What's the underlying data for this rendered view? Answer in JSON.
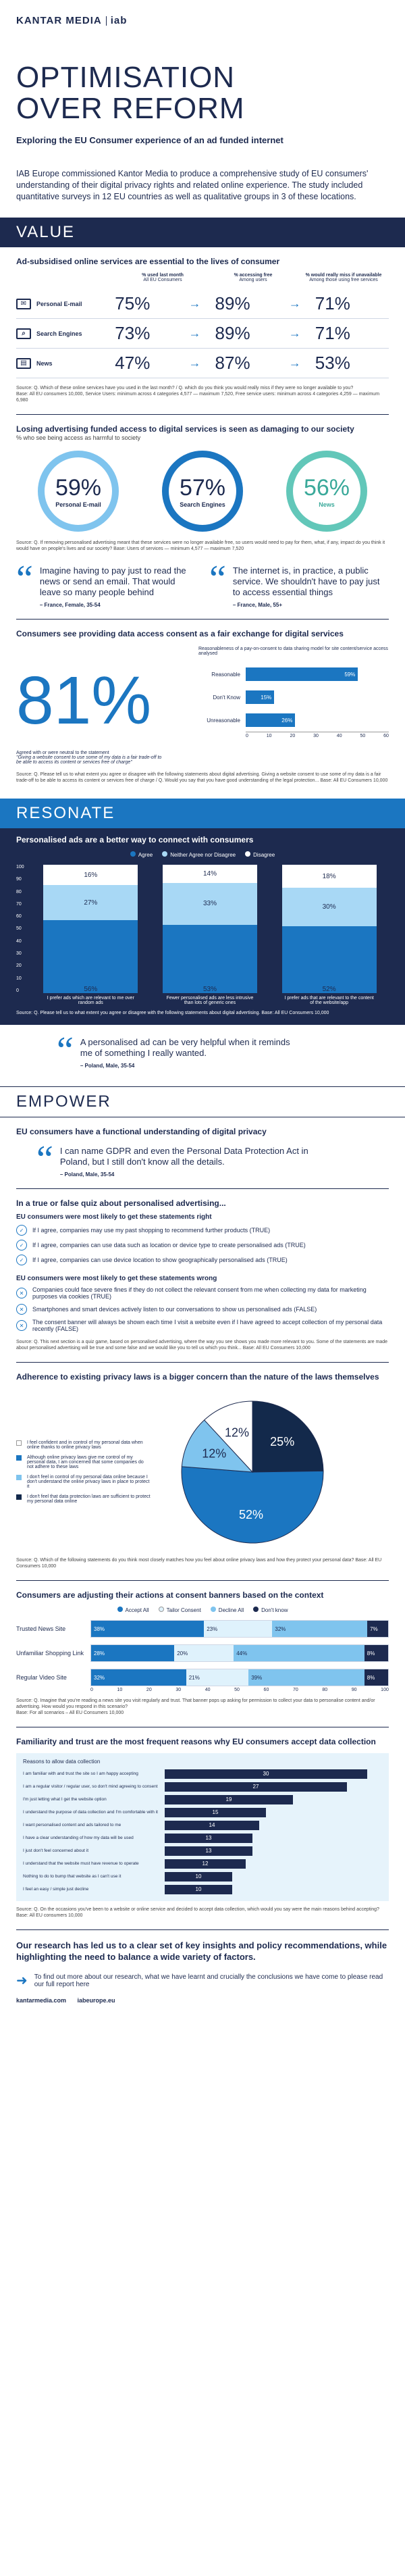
{
  "header": {
    "logo_left": "KANTAR MEDIA",
    "logo_right": "iab"
  },
  "title_line1": "OPTIMISATION",
  "title_line2": "OVER REFORM",
  "subtitle": "Exploring the EU Consumer experience of an ad funded internet",
  "intro": "IAB Europe commissioned Kantor Media to produce a comprehensive study of EU consumers' understanding of their digital privacy rights and related online experience. The study included quantitative surveys in 12 EU countries as well as qualitative groups in 3 of these locations.",
  "value": {
    "band": "VALUE",
    "heading": "Ad-subsidised online services are essential to the lives of consumer",
    "col1": "% used last month",
    "col1_sub": "All EU Consumers",
    "col2": "% accessing free",
    "col2_sub": "Among users",
    "col3": "% would really miss if unavailable",
    "col3_sub": "Among those using free services",
    "rows": [
      {
        "label": "Personal E-mail",
        "v1": "75%",
        "v2": "89%",
        "v3": "71%"
      },
      {
        "label": "Search Engines",
        "v1": "73%",
        "v2": "89%",
        "v3": "71%"
      },
      {
        "label": "News",
        "v1": "47%",
        "v2": "87%",
        "v3": "53%"
      }
    ],
    "source": "Source: Q. Which of these online services have you used in the last month? / Q. which do you think you would really miss if they were no longer available to you?",
    "base": "Base: All EU consumers 10,000, Service Users: minimum across 4 categories 4,577 — maximum 7,520, Free service users: minimum across 4 categories 4,259 — maximum 6,980"
  },
  "losing": {
    "heading": "Losing advertising funded access to digital services is seen as damaging to our society",
    "sub": "% who see being access as harmful to society",
    "circles": [
      {
        "pct": "59%",
        "name": "Personal E-mail"
      },
      {
        "pct": "57%",
        "name": "Search Engines"
      },
      {
        "pct": "56%",
        "name": "News"
      }
    ],
    "source": "Source: Q. If removing personalised advertising meant that these services were no longer available free, so users would need to pay for them, what, if any, impact do you think it would have on people's lives and our society? Base: Users of services — minimum 4,577 — maximum 7,520"
  },
  "quotes1": [
    {
      "text": "Imagine having to pay just to read the news or send an email. That would leave so many people behind",
      "author": "– France, Female, 35-54"
    },
    {
      "text": "The internet is, in practice, a public service. We shouldn't have to pay just to access essential things",
      "author": "– France, Male, 55+"
    }
  ],
  "exchange": {
    "heading": "Consumers see providing data access consent as a fair exchange for digital services",
    "big": "81%",
    "big_caption": "Agreed with or were neutral to the statement",
    "big_quote": "\"Giving a website consent to use some of my data is a fair trade-off to be able to access its content or services free of charge\"",
    "chart_title": "Reasonableness of a pay-on-consent to data sharing model for site content/service access analysed",
    "bars": [
      {
        "label": "Reasonable",
        "value": "59%"
      },
      {
        "label": "Don't Know",
        "value": "15%"
      },
      {
        "label": "Unreasonable",
        "value": "26%"
      }
    ],
    "axis": [
      "0",
      "10",
      "20",
      "30",
      "40",
      "50",
      "60"
    ],
    "source": "Source: Q. Please tell us to what extent you agree or disagree with the following statements about digital advertising. Giving a website consent to use some of my data is a fair trade-off to be able to access its content or services free of charge / Q. Would you say that you have good understanding of the legal protection... Base: All EU Consumers 10,000"
  },
  "resonate": {
    "band": "RESONATE",
    "heading": "Personalised ads are a better way to connect with consumers",
    "legend": [
      "Agree",
      "Neither Agree nor Disagree",
      "Disagree"
    ],
    "yaxis": [
      "100",
      "90",
      "80",
      "70",
      "60",
      "50",
      "40",
      "30",
      "20",
      "10",
      "0"
    ],
    "groups": [
      {
        "label": "I prefer ads which are relevant to me over random ads",
        "agree": "56%",
        "neutral": "27%",
        "disagree": "16%"
      },
      {
        "label": "Fewer personalised ads are less intrusive than lots of generic ones",
        "agree": "53%",
        "neutral": "33%",
        "disagree": "14%"
      },
      {
        "label": "I prefer ads that are relevant to the content of the website/app",
        "agree": "52%",
        "neutral": "30%",
        "disagree": "18%"
      }
    ],
    "source": "Source: Q. Please tell us to what extent you agree or disagree with the following statements about digital advertising. Base: All EU Consumers 10,000",
    "quote": "A personalised ad can be very helpful when it reminds me of something I really wanted.",
    "quote_author": "– Poland, Male, 35-54"
  },
  "empower": {
    "band": "EMPOWER",
    "heading": "EU consumers have a functional understanding of digital privacy",
    "quote": "I can name GDPR and even the Personal Data Protection Act in Poland, but I still don't know all the details.",
    "quote_author": "– Poland, Male, 35-54",
    "quiz_title": "In a true or false quiz about personalised advertising...",
    "right_title": "EU consumers were most likely to get these statements right",
    "right": [
      "If I agree, companies may use my past shopping to recommend further products (TRUE)",
      "If I agree, companies can use data such as location or device type to create personalised ads (TRUE)",
      "If I agree, companies can use device location to show geographically personalised ads (TRUE)"
    ],
    "wrong_title": "EU consumers were most likely to get these statements wrong",
    "wrong": [
      "Companies could face severe fines if they do not collect the relevant consent from me when collecting my data for marketing purposes via cookies (TRUE)",
      "Smartphones and smart devices actively listen to our conversations to show us personalised ads (FALSE)",
      "The consent banner will always be shown each time I visit a website even if I have agreed to accept collection of my personal data recently (FALSE)"
    ],
    "source": "Source: Q. This next section is a quiz game, based on personalised advertising, where the way you see shows you made more relevant to you. Some of the statements are made about personalised advertising will be true and some false and we would like you to tell us which you think... Base: All EU Consumers 10,000"
  },
  "adherence": {
    "heading": "Adherence to existing privacy laws is a bigger concern than the nature of the laws themselves",
    "legend": [
      "I feel confident and in control of my personal data when online thanks to online privacy laws",
      "Although online privacy laws give me control of my personal data, I am concerned that some companies do not adhere to these laws",
      "I don't feel in control of my personal data online because I don't understand the online privacy laws in place to protect it",
      "I don't feel that data protection laws are sufficient to protect my personal data online"
    ],
    "slices": [
      {
        "label": "25%",
        "value": 25,
        "color": "#13294b"
      },
      {
        "label": "52%",
        "value": 52,
        "color": "#1b76c1"
      },
      {
        "label": "12%",
        "value": 12,
        "color": "#7fc4ee"
      },
      {
        "label": "12%",
        "value": 12,
        "color": "#ffffff"
      }
    ],
    "source": "Source: Q. Which of the following statements do you think most closely matches how you feel about online privacy laws and how they protect your personal data? Base: All EU Consumers 10,000"
  },
  "consent": {
    "heading": "Consumers are adjusting their actions at consent banners based on the context",
    "legend": [
      "Accept All",
      "Tailor Consent",
      "Decline All",
      "Don't know"
    ],
    "rows": [
      {
        "label": "Trusted News Site",
        "a": "38%",
        "b": "23%",
        "c": "32%",
        "d": "7%"
      },
      {
        "label": "Unfamiliar Shopping Link",
        "a": "28%",
        "b": "20%",
        "c": "44%",
        "d": "8%"
      },
      {
        "label": "Regular Video Site",
        "a": "32%",
        "b": "21%",
        "c": "39%",
        "d": "8%"
      }
    ],
    "axis": [
      "0",
      "10",
      "20",
      "30",
      "40",
      "50",
      "60",
      "70",
      "80",
      "90",
      "100"
    ],
    "source": "Source: Q. Imagine that you're reading a news site you visit regularly and trust. That banner pops up asking for permission to collect your data to personalise content and/or advertising. How would you respond in this scenario?",
    "base": "Base: For all scenarios – All EU Consumers 10,000"
  },
  "familiarity": {
    "heading": "Familiarity and trust are the most frequent reasons why EU consumers accept data collection",
    "sub": "Reasons to allow data collection",
    "items": [
      {
        "label": "I am familiar with and trust the site so I am happy accepting",
        "value": "30"
      },
      {
        "label": "I am a regular visitor / regular user, so don't mind agreeing to consent",
        "value": "27"
      },
      {
        "label": "I'm just letting what I get the website option",
        "value": "19"
      },
      {
        "label": "I understand the purpose of data collection and I'm comfortable with it",
        "value": "15"
      },
      {
        "label": "I want personalised content and ads tailored to me",
        "value": "14"
      },
      {
        "label": "I have a clear understanding of how my data will be used",
        "value": "13"
      },
      {
        "label": "I just don't feel concerned about it",
        "value": "13"
      },
      {
        "label": "I understand that the website must have revenue to operate",
        "value": "12"
      },
      {
        "label": "Nothing to do to bump that website as I can't use it",
        "value": "10"
      },
      {
        "label": "I feel an easy / simple just decline",
        "value": "10"
      }
    ],
    "source": "Source: Q. On the occasions you've been to a website or online service and decided to accept data collection, which would you say were the main reasons behind accepting? Base: All EU consumers 10,000"
  },
  "closing": {
    "heading": "Our research has led us to a clear set of key insights and policy recommendations, while highlighting the need to balance a wide variety of factors.",
    "cta": "To find out more about our research, what we have learnt and crucially the conclusions we have come to please read our full report here",
    "links": [
      "kantarmedia.com",
      "iabeurope.eu"
    ]
  }
}
